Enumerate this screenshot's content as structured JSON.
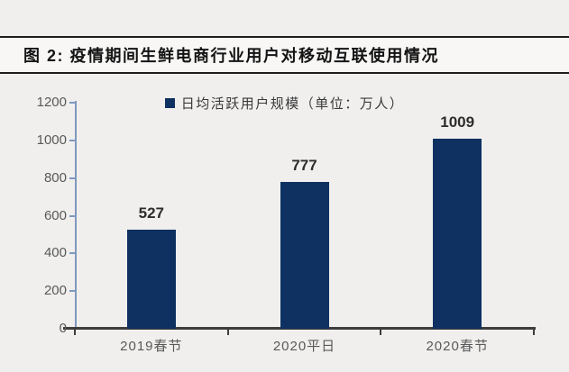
{
  "figure": {
    "title": "图 2:  疫情期间生鲜电商行业用户对移动互联使用情况"
  },
  "chart_data": {
    "type": "bar",
    "title": "疫情期间生鲜电商行业用户对移动互联使用情况",
    "legend": "日均活跃用户规模（单位：万人）",
    "legend_position": "top",
    "categories": [
      "2019春节",
      "2020平日",
      "2020春节"
    ],
    "values": [
      527,
      777,
      1009
    ],
    "xlabel": "",
    "ylabel": "",
    "ylim": [
      0,
      1200
    ],
    "ytick_step": 200,
    "grid": false,
    "colors": {
      "bar": "#0f3161",
      "page_bg": "#f0efee",
      "title_bg": "#f8f7f6",
      "border": "#1c1c1c",
      "y_axis": "#7f98bf",
      "x_axis": "#3d3d3d",
      "axis_label": "#595959",
      "value_label": "#2d2d2d"
    }
  }
}
